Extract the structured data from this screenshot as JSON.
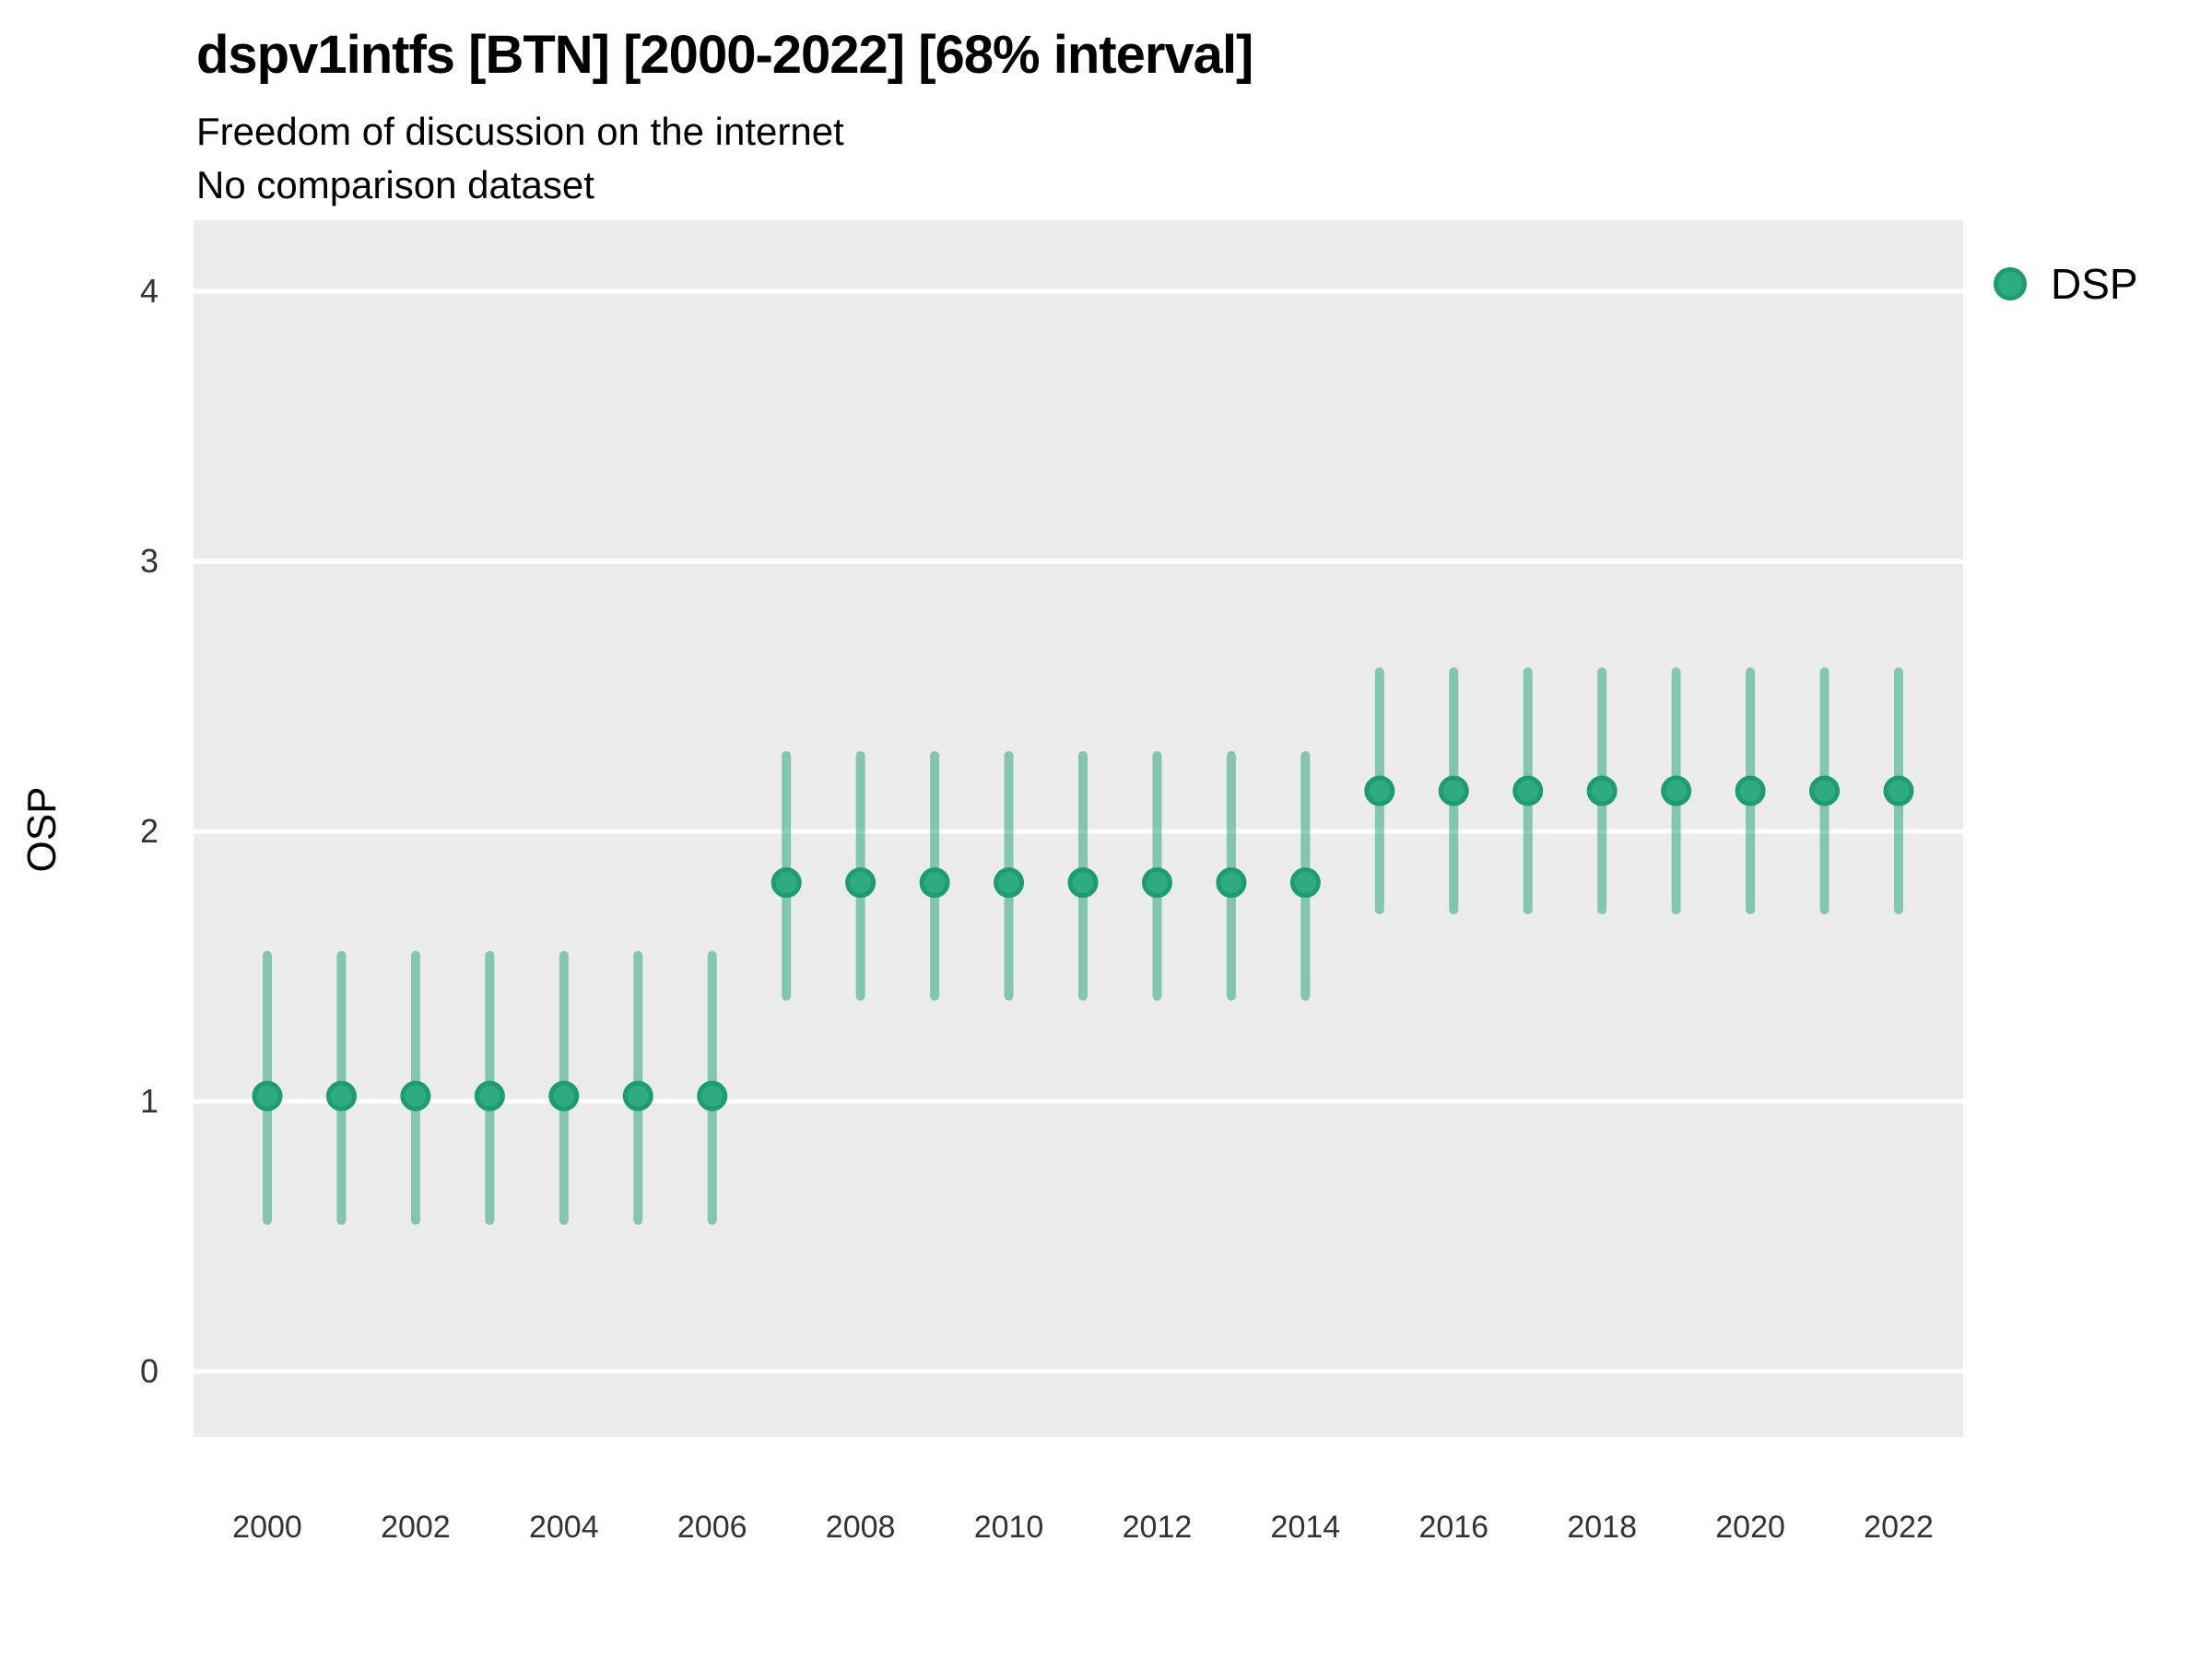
{
  "header": {
    "title": "dspv1intfs [BTN] [2000-2022] [68% interval]",
    "subtitle": "Freedom of discussion on the internet",
    "note": "No comparison dataset"
  },
  "legend": {
    "label": "DSP"
  },
  "axes": {
    "y_label": "OSP"
  },
  "colors": {
    "point_fill": "#2fab81",
    "point_stroke": "#1d9c72",
    "interval_line": "rgba(44,168,125,0.55)",
    "panel_bg": "#ebebeb",
    "gridline": "#ffffff",
    "tick_text": "#333333",
    "title_text": "#000000"
  },
  "chart_data": {
    "type": "pointrange",
    "title": "dspv1intfs [BTN] [2000-2022] [68% interval]",
    "subtitle": "Freedom of discussion on the internet",
    "note": "No comparison dataset",
    "xlabel": "",
    "ylabel": "OSP",
    "interval": "68%",
    "country": "BTN",
    "ylim": [
      -0.24,
      4.26
    ],
    "y_tick_values": [
      0,
      1,
      2,
      3,
      4
    ],
    "x_tick_values": [
      2000,
      2002,
      2004,
      2006,
      2008,
      2010,
      2012,
      2014,
      2016,
      2018,
      2020,
      2022
    ],
    "grid": "horizontal-major-only",
    "legend_position": "right",
    "series": [
      {
        "name": "DSP",
        "x": [
          2000,
          2001,
          2002,
          2003,
          2004,
          2005,
          2006,
          2007,
          2008,
          2009,
          2010,
          2011,
          2012,
          2013,
          2014,
          2015,
          2016,
          2017,
          2018,
          2019,
          2020,
          2021,
          2022
        ],
        "est": [
          1.02,
          1.02,
          1.02,
          1.02,
          1.02,
          1.02,
          1.02,
          1.81,
          1.81,
          1.81,
          1.81,
          1.81,
          1.81,
          1.81,
          1.81,
          2.15,
          2.15,
          2.15,
          2.15,
          2.15,
          2.15,
          2.15,
          2.15
        ],
        "lo": [
          0.56,
          0.56,
          0.56,
          0.56,
          0.56,
          0.56,
          0.56,
          1.39,
          1.39,
          1.39,
          1.39,
          1.39,
          1.39,
          1.39,
          1.39,
          1.71,
          1.71,
          1.71,
          1.71,
          1.71,
          1.71,
          1.71,
          1.71
        ],
        "hi": [
          1.54,
          1.54,
          1.54,
          1.54,
          1.54,
          1.54,
          1.54,
          2.28,
          2.28,
          2.28,
          2.28,
          2.28,
          2.28,
          2.28,
          2.28,
          2.59,
          2.59,
          2.59,
          2.59,
          2.59,
          2.59,
          2.59,
          2.59
        ]
      }
    ]
  }
}
